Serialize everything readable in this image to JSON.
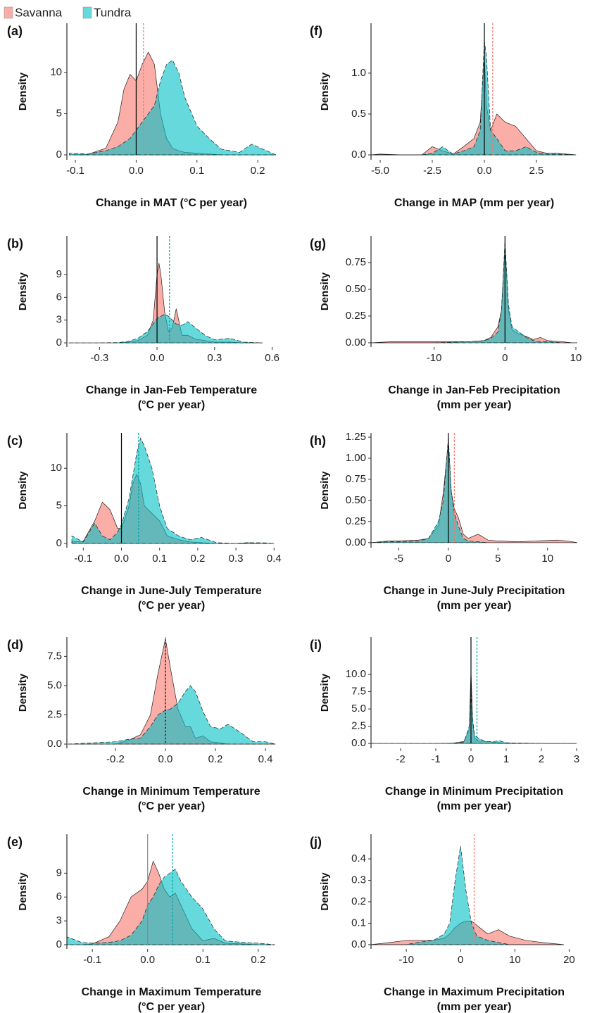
{
  "chart_data": [
    {
      "type": "density",
      "label": "(a)",
      "ylabel": "Density",
      "xlabel": [
        "Change in MAT (°C per year)"
      ],
      "x": [
        -0.11,
        -0.08,
        -0.05,
        -0.03,
        -0.02,
        -0.01,
        0,
        0.01,
        0.02,
        0.03,
        0.04,
        0.05,
        0.06,
        0.07,
        0.08,
        0.1,
        0.12,
        0.14,
        0.17,
        0.19,
        0.23
      ],
      "series": [
        {
          "name": "Savanna",
          "color": "#f8766d",
          "values": [
            0,
            0.05,
            0.8,
            4,
            8,
            9.8,
            9,
            11,
            12.5,
            11,
            5,
            2,
            0.8,
            0.5,
            0.3,
            0.2,
            0.1,
            0,
            0,
            0,
            0
          ]
        },
        {
          "name": "Tundra",
          "color": "#00bfc4",
          "values": [
            0.2,
            0.1,
            0.5,
            1,
            1.5,
            2,
            3,
            4,
            5,
            6,
            9,
            11,
            11.5,
            10,
            7,
            3.5,
            2,
            0.7,
            0.3,
            1.3,
            0
          ]
        }
      ],
      "vlines": [
        {
          "value": 0,
          "color": "#000000",
          "dash": false
        },
        {
          "value": 0.012,
          "color": "#f8766d",
          "dash": true
        }
      ],
      "xlim": [
        -0.114,
        0.23
      ],
      "ylim": [
        -0.6,
        16
      ],
      "xticks": [
        -0.1,
        {
          "value": 0,
          "label": "0.0"
        },
        0.1,
        0.2
      ],
      "yticks": [
        0,
        5,
        10
      ]
    },
    {
      "type": "density",
      "label": "(b)",
      "ylabel": "Density",
      "xlabel": [
        "Change in Jan-Feb Temperature",
        "(°C per year)"
      ],
      "x": [
        -0.46,
        -0.3,
        -0.2,
        -0.15,
        -0.1,
        -0.05,
        -0.02,
        0,
        0.01,
        0.02,
        0.04,
        0.06,
        0.08,
        0.1,
        0.13,
        0.16,
        0.2,
        0.25,
        0.3,
        0.38,
        0.45,
        0.55
      ],
      "series": [
        {
          "name": "Savanna",
          "color": "#f8766d",
          "values": [
            0,
            0,
            0,
            0.1,
            0.3,
            1,
            3,
            9,
            10.5,
            9,
            4,
            1.5,
            2,
            4.5,
            1,
            1,
            0.5,
            0.3,
            0.1,
            0.1,
            0,
            0
          ]
        },
        {
          "name": "Tundra",
          "color": "#00bfc4",
          "values": [
            0,
            0,
            0.05,
            0.2,
            0.6,
            1.5,
            2.5,
            3.2,
            3.4,
            3.5,
            3.8,
            3.5,
            3,
            2.5,
            2.3,
            2.8,
            2,
            1,
            0.4,
            0.6,
            0.1,
            0
          ]
        }
      ],
      "vlines": [
        {
          "value": 0,
          "color": "#000000",
          "dash": false
        },
        {
          "value": 0.065,
          "color": "#00a5aa",
          "dash": true
        }
      ],
      "xlim": [
        -0.47,
        0.62
      ],
      "ylim": [
        -0.55,
        14.1
      ],
      "xticks": [
        -0.3,
        {
          "value": 0,
          "label": "0.0"
        },
        0.3,
        0.6
      ],
      "yticks": [
        0,
        3,
        6,
        9
      ]
    },
    {
      "type": "density",
      "label": "(c)",
      "ylabel": "Density",
      "xlabel": [
        "Change in June-July Temperature",
        "(°C per year)"
      ],
      "x": [
        -0.13,
        -0.1,
        -0.07,
        -0.05,
        -0.03,
        -0.01,
        0,
        0.02,
        0.03,
        0.04,
        0.05,
        0.06,
        0.08,
        0.1,
        0.12,
        0.15,
        0.18,
        0.21,
        0.25,
        0.3,
        0.33,
        0.37,
        0.4
      ],
      "series": [
        {
          "name": "Savanna",
          "color": "#f8766d",
          "values": [
            0.2,
            0.3,
            3,
            5.5,
            4.5,
            2,
            2,
            5,
            8,
            9.2,
            8,
            5,
            4,
            3,
            1,
            0.5,
            0.2,
            0.1,
            0,
            0,
            0.1,
            0,
            0
          ]
        },
        {
          "name": "Tundra",
          "color": "#00bfc4",
          "values": [
            1,
            0.2,
            2.7,
            1,
            0.5,
            1.5,
            2.5,
            6,
            9,
            12,
            14,
            13,
            10,
            5,
            2,
            1,
            0.5,
            0.8,
            0.1,
            0,
            0.1,
            0.1,
            0
          ]
        }
      ],
      "vlines": [
        {
          "value": 0,
          "color": "#000000",
          "dash": false
        },
        {
          "value": 0.045,
          "color": "#00a5aa",
          "dash": true
        }
      ],
      "xlim": [
        -0.143,
        0.405
      ],
      "ylim": [
        -0.56,
        14.7
      ],
      "xticks": [
        -0.1,
        {
          "value": 0,
          "label": "0.0"
        },
        0.1,
        0.2,
        0.3,
        0.4
      ],
      "yticks": [
        0,
        5,
        10
      ]
    },
    {
      "type": "density",
      "label": "(d)",
      "ylabel": "Density",
      "xlabel": [
        "Change in Minimum Temperature",
        "(°C per year)"
      ],
      "x": [
        -0.39,
        -0.3,
        -0.2,
        -0.15,
        -0.1,
        -0.06,
        -0.03,
        0,
        0.02,
        0.05,
        0.08,
        0.1,
        0.12,
        0.15,
        0.18,
        0.22,
        0.25,
        0.3,
        0.35,
        0.4,
        0.44
      ],
      "series": [
        {
          "name": "Savanna",
          "color": "#f8766d",
          "values": [
            0,
            0,
            0,
            0.3,
            0.8,
            2.5,
            6,
            9,
            6.5,
            3,
            1.5,
            1.5,
            0.5,
            0.7,
            0.2,
            0.1,
            0,
            0,
            0,
            0,
            0
          ]
        },
        {
          "name": "Tundra",
          "color": "#00bfc4",
          "values": [
            0,
            0.1,
            0.2,
            0.4,
            0.5,
            1.5,
            2.5,
            2.9,
            3,
            3.5,
            4.5,
            5,
            4.5,
            2.8,
            1.5,
            1.3,
            1.7,
            1,
            0.2,
            0.2,
            0
          ]
        }
      ],
      "vlines": [
        {
          "value": 0,
          "color": "#000000",
          "dash": false
        },
        {
          "value": 0,
          "color": "#f8766d",
          "dash": true
        }
      ],
      "xlim": [
        -0.394,
        0.442
      ],
      "ylim": [
        -0.36,
        9.15
      ],
      "xticks": [
        -0.2,
        {
          "value": 0,
          "label": "0.0"
        },
        0.2,
        0.4
      ],
      "yticks": [
        {
          "value": 0,
          "label": "0.0"
        },
        2.5,
        {
          "value": 5,
          "label": "5.0"
        },
        7.5
      ]
    },
    {
      "type": "density",
      "label": "(e)",
      "ylabel": "Density",
      "xlabel": [
        "Change in Maximum Temperature",
        "(°C per year)"
      ],
      "x": [
        -0.146,
        -0.12,
        -0.1,
        -0.07,
        -0.05,
        -0.03,
        -0.01,
        0,
        0.01,
        0.02,
        0.03,
        0.04,
        0.05,
        0.06,
        0.08,
        0.1,
        0.12,
        0.14,
        0.17,
        0.2,
        0.23
      ],
      "series": [
        {
          "name": "Savanna",
          "color": "#f8766d",
          "values": [
            0,
            0,
            0.1,
            1,
            3,
            6,
            7,
            8,
            10.5,
            9,
            7,
            6,
            6.5,
            5,
            2,
            0.5,
            0.8,
            0.2,
            0.1,
            0,
            0
          ]
        },
        {
          "name": "Tundra",
          "color": "#00bfc4",
          "values": [
            1,
            0.3,
            0.2,
            0.3,
            0.5,
            1.2,
            3,
            5,
            6,
            7.5,
            8.5,
            9,
            9.5,
            8,
            6,
            4.5,
            2,
            0.5,
            0.3,
            0.2,
            0
          ]
        }
      ],
      "vlines": [
        {
          "value": 0,
          "color": "#888888",
          "dash": false
        },
        {
          "value": 0.045,
          "color": "#00a5aa",
          "dash": true
        }
      ],
      "xlim": [
        -0.146,
        0.232
      ],
      "ylim": [
        -0.53,
        13.9
      ],
      "xticks": [
        -0.1,
        {
          "value": 0,
          "label": "0.0"
        },
        0.1,
        0.2
      ],
      "yticks": [
        0,
        3,
        6,
        9
      ]
    },
    {
      "type": "density",
      "label": "(f)",
      "ylabel": "Density",
      "xlabel": [
        "Change in MAP (mm per year)"
      ],
      "x": [
        -5.44,
        -5,
        -4,
        -3,
        -2.5,
        -2,
        -1.5,
        -1,
        -0.5,
        -0.2,
        0,
        0.1,
        0.3,
        0.6,
        1,
        1.5,
        2,
        2.5,
        3,
        3.5,
        4.4
      ],
      "series": [
        {
          "name": "Savanna",
          "color": "#f8766d",
          "values": [
            0,
            0.01,
            0,
            0,
            0.1,
            0.05,
            0.01,
            0.1,
            0.2,
            0.4,
            1.2,
            0.6,
            0.3,
            0.5,
            0.4,
            0.35,
            0.2,
            0.05,
            0.02,
            0.02,
            0
          ]
        },
        {
          "name": "Tundra",
          "color": "#00bfc4",
          "values": [
            0,
            0,
            0,
            0,
            0.02,
            0.1,
            0.01,
            0.05,
            0.1,
            0.3,
            1.4,
            1.2,
            0.3,
            0.2,
            0.05,
            0.05,
            0.1,
            0.03,
            0.01,
            0.01,
            0
          ]
        }
      ],
      "vlines": [
        {
          "value": 0,
          "color": "#000000",
          "dash": false
        },
        {
          "value": 0.4,
          "color": "#f8766d",
          "dash": true
        }
      ],
      "xlim": [
        -5.44,
        4.46
      ],
      "ylim": [
        -0.06,
        1.61
      ],
      "xticks": [
        {
          "value": -5,
          "label": "-5.0"
        },
        -2.5,
        {
          "value": 0,
          "label": "0.0"
        },
        2.5
      ],
      "yticks": [
        {
          "value": 0,
          "label": "0.0"
        },
        0.5,
        {
          "value": 1,
          "label": "1.0"
        }
      ]
    },
    {
      "type": "density",
      "label": "(g)",
      "ylabel": "Density",
      "xlabel": [
        "Change in Jan-Feb Precipitation",
        "(mm per year)"
      ],
      "x": [
        -18.9,
        -16,
        -10,
        -5,
        -3,
        -2,
        -1,
        -0.5,
        0,
        0.5,
        1,
        2,
        3,
        4,
        5,
        6,
        8,
        9.5,
        10.2
      ],
      "series": [
        {
          "name": "Savanna",
          "color": "#f8766d",
          "values": [
            0,
            0.01,
            0.01,
            0.01,
            0.02,
            0.05,
            0.15,
            0.3,
            0.9,
            0.3,
            0.12,
            0.08,
            0.06,
            0.03,
            0.05,
            0.02,
            0.01,
            0,
            0
          ]
        },
        {
          "name": "Tundra",
          "color": "#00bfc4",
          "values": [
            0,
            0,
            0,
            0.01,
            0.02,
            0.04,
            0.1,
            0.3,
            0.95,
            0.35,
            0.15,
            0.1,
            0.05,
            0.02,
            0.01,
            0.01,
            0,
            0,
            0
          ]
        }
      ],
      "vlines": [
        {
          "value": 0,
          "color": "#000000",
          "dash": false
        }
      ],
      "xlim": [
        -18.9,
        10.2
      ],
      "ylim": [
        -0.04,
        1.0
      ],
      "xticks": [
        -10,
        0,
        10
      ],
      "yticks": [
        {
          "value": 0,
          "label": "0.00"
        },
        0.25,
        {
          "value": 0.5,
          "label": "0.50"
        },
        0.75
      ]
    },
    {
      "type": "density",
      "label": "(h)",
      "ylabel": "Density",
      "xlabel": [
        "Change in June-July Precipitation",
        "(mm per year)"
      ],
      "x": [
        -7.8,
        -6,
        -5,
        -3,
        -2,
        -1,
        -0.5,
        0,
        0.3,
        0.6,
        1,
        1.5,
        2,
        3,
        4,
        5,
        7,
        9,
        11,
        12,
        13
      ],
      "series": [
        {
          "name": "Savanna",
          "color": "#f8766d",
          "values": [
            0,
            0.02,
            0.02,
            0.03,
            0.05,
            0.2,
            0.6,
            1.2,
            0.6,
            0.4,
            0.3,
            0.1,
            0.05,
            0.1,
            0.03,
            0.02,
            0.01,
            0.02,
            0.03,
            0.02,
            0
          ]
        },
        {
          "name": "Tundra",
          "color": "#00bfc4",
          "values": [
            0,
            0.01,
            0.01,
            0.02,
            0.05,
            0.25,
            0.5,
            1.25,
            0.6,
            0.35,
            0.2,
            0.05,
            0.02,
            0.01,
            0,
            0,
            0,
            0,
            0,
            0,
            0
          ]
        }
      ],
      "vlines": [
        {
          "value": 0,
          "color": "#000000",
          "dash": false
        },
        {
          "value": 0.6,
          "color": "#f8766d",
          "dash": true
        }
      ],
      "xlim": [
        -7.8,
        13
      ],
      "ylim": [
        -0.06,
        1.3
      ],
      "xticks": [
        -5,
        0,
        5,
        10
      ],
      "yticks": [
        {
          "value": 0,
          "label": "0.00"
        },
        0.25,
        {
          "value": 0.5,
          "label": "0.50"
        },
        0.75,
        {
          "value": 1,
          "label": "1.00"
        },
        1.25
      ]
    },
    {
      "type": "density",
      "label": "(i)",
      "ylabel": "Density",
      "xlabel": [
        "Change in Minimum Precipitation",
        "(mm per year)"
      ],
      "x": [
        -2.84,
        -2,
        -1,
        -0.5,
        -0.2,
        -0.05,
        0,
        0.05,
        0.1,
        0.2,
        0.4,
        0.6,
        0.8,
        1,
        1.5,
        2,
        3
      ],
      "series": [
        {
          "name": "Savanna",
          "color": "#f8766d",
          "values": [
            0,
            0,
            0,
            0.05,
            0.3,
            2,
            10.5,
            3,
            0.8,
            0.4,
            0.3,
            0.2,
            0.1,
            0.05,
            0,
            0,
            0
          ]
        },
        {
          "name": "Tundra",
          "color": "#00bfc4",
          "values": [
            0,
            0,
            0,
            0.03,
            0.2,
            2.5,
            8,
            3.5,
            1.2,
            0.8,
            0.3,
            0.25,
            0.4,
            0.1,
            0.05,
            0,
            0
          ]
        }
      ],
      "vlines": [
        {
          "value": 0,
          "color": "#000000",
          "dash": false
        },
        {
          "value": 0.17,
          "color": "#00a5aa",
          "dash": true
        }
      ],
      "xlim": [
        -2.84,
        3.02
      ],
      "ylim": [
        -0.7,
        15.4
      ],
      "xticks": [
        -2,
        -1,
        0,
        1,
        2,
        3
      ],
      "yticks": [
        {
          "value": 0,
          "label": "0.0"
        },
        2.5,
        {
          "value": 5,
          "label": "5.0"
        },
        7.5,
        {
          "value": 10,
          "label": "10.0"
        }
      ]
    },
    {
      "type": "density",
      "label": "(j)",
      "ylabel": "Density",
      "xlabel": [
        "Change in Maximum Precipitation",
        "(mm per year)"
      ],
      "x": [
        -16.5,
        -13,
        -10,
        -8,
        -5,
        -3,
        -2,
        -1,
        0,
        1,
        2,
        3,
        5,
        7,
        9,
        12,
        15,
        19
      ],
      "series": [
        {
          "name": "Savanna",
          "color": "#f8766d",
          "values": [
            0,
            0.01,
            0.02,
            0.02,
            0.02,
            0.03,
            0.05,
            0.08,
            0.1,
            0.11,
            0.11,
            0.09,
            0.05,
            0.07,
            0.04,
            0.02,
            0.01,
            0
          ]
        },
        {
          "name": "Tundra",
          "color": "#00bfc4",
          "values": [
            0,
            0,
            0,
            0.01,
            0.02,
            0.05,
            0.1,
            0.3,
            0.46,
            0.25,
            0.1,
            0.04,
            0.02,
            0.01,
            0,
            0,
            0,
            0
          ]
        }
      ],
      "vlines": [
        {
          "value": 2.5,
          "color": "#f8766d",
          "dash": true
        }
      ],
      "xlim": [
        -16.5,
        21.5
      ],
      "ylim": [
        -0.02,
        0.515
      ],
      "xticks": [
        -10,
        0,
        10,
        20
      ],
      "yticks": [
        {
          "value": 0,
          "label": "0.0"
        },
        0.1,
        0.2,
        0.3,
        0.4
      ]
    }
  ]
}
